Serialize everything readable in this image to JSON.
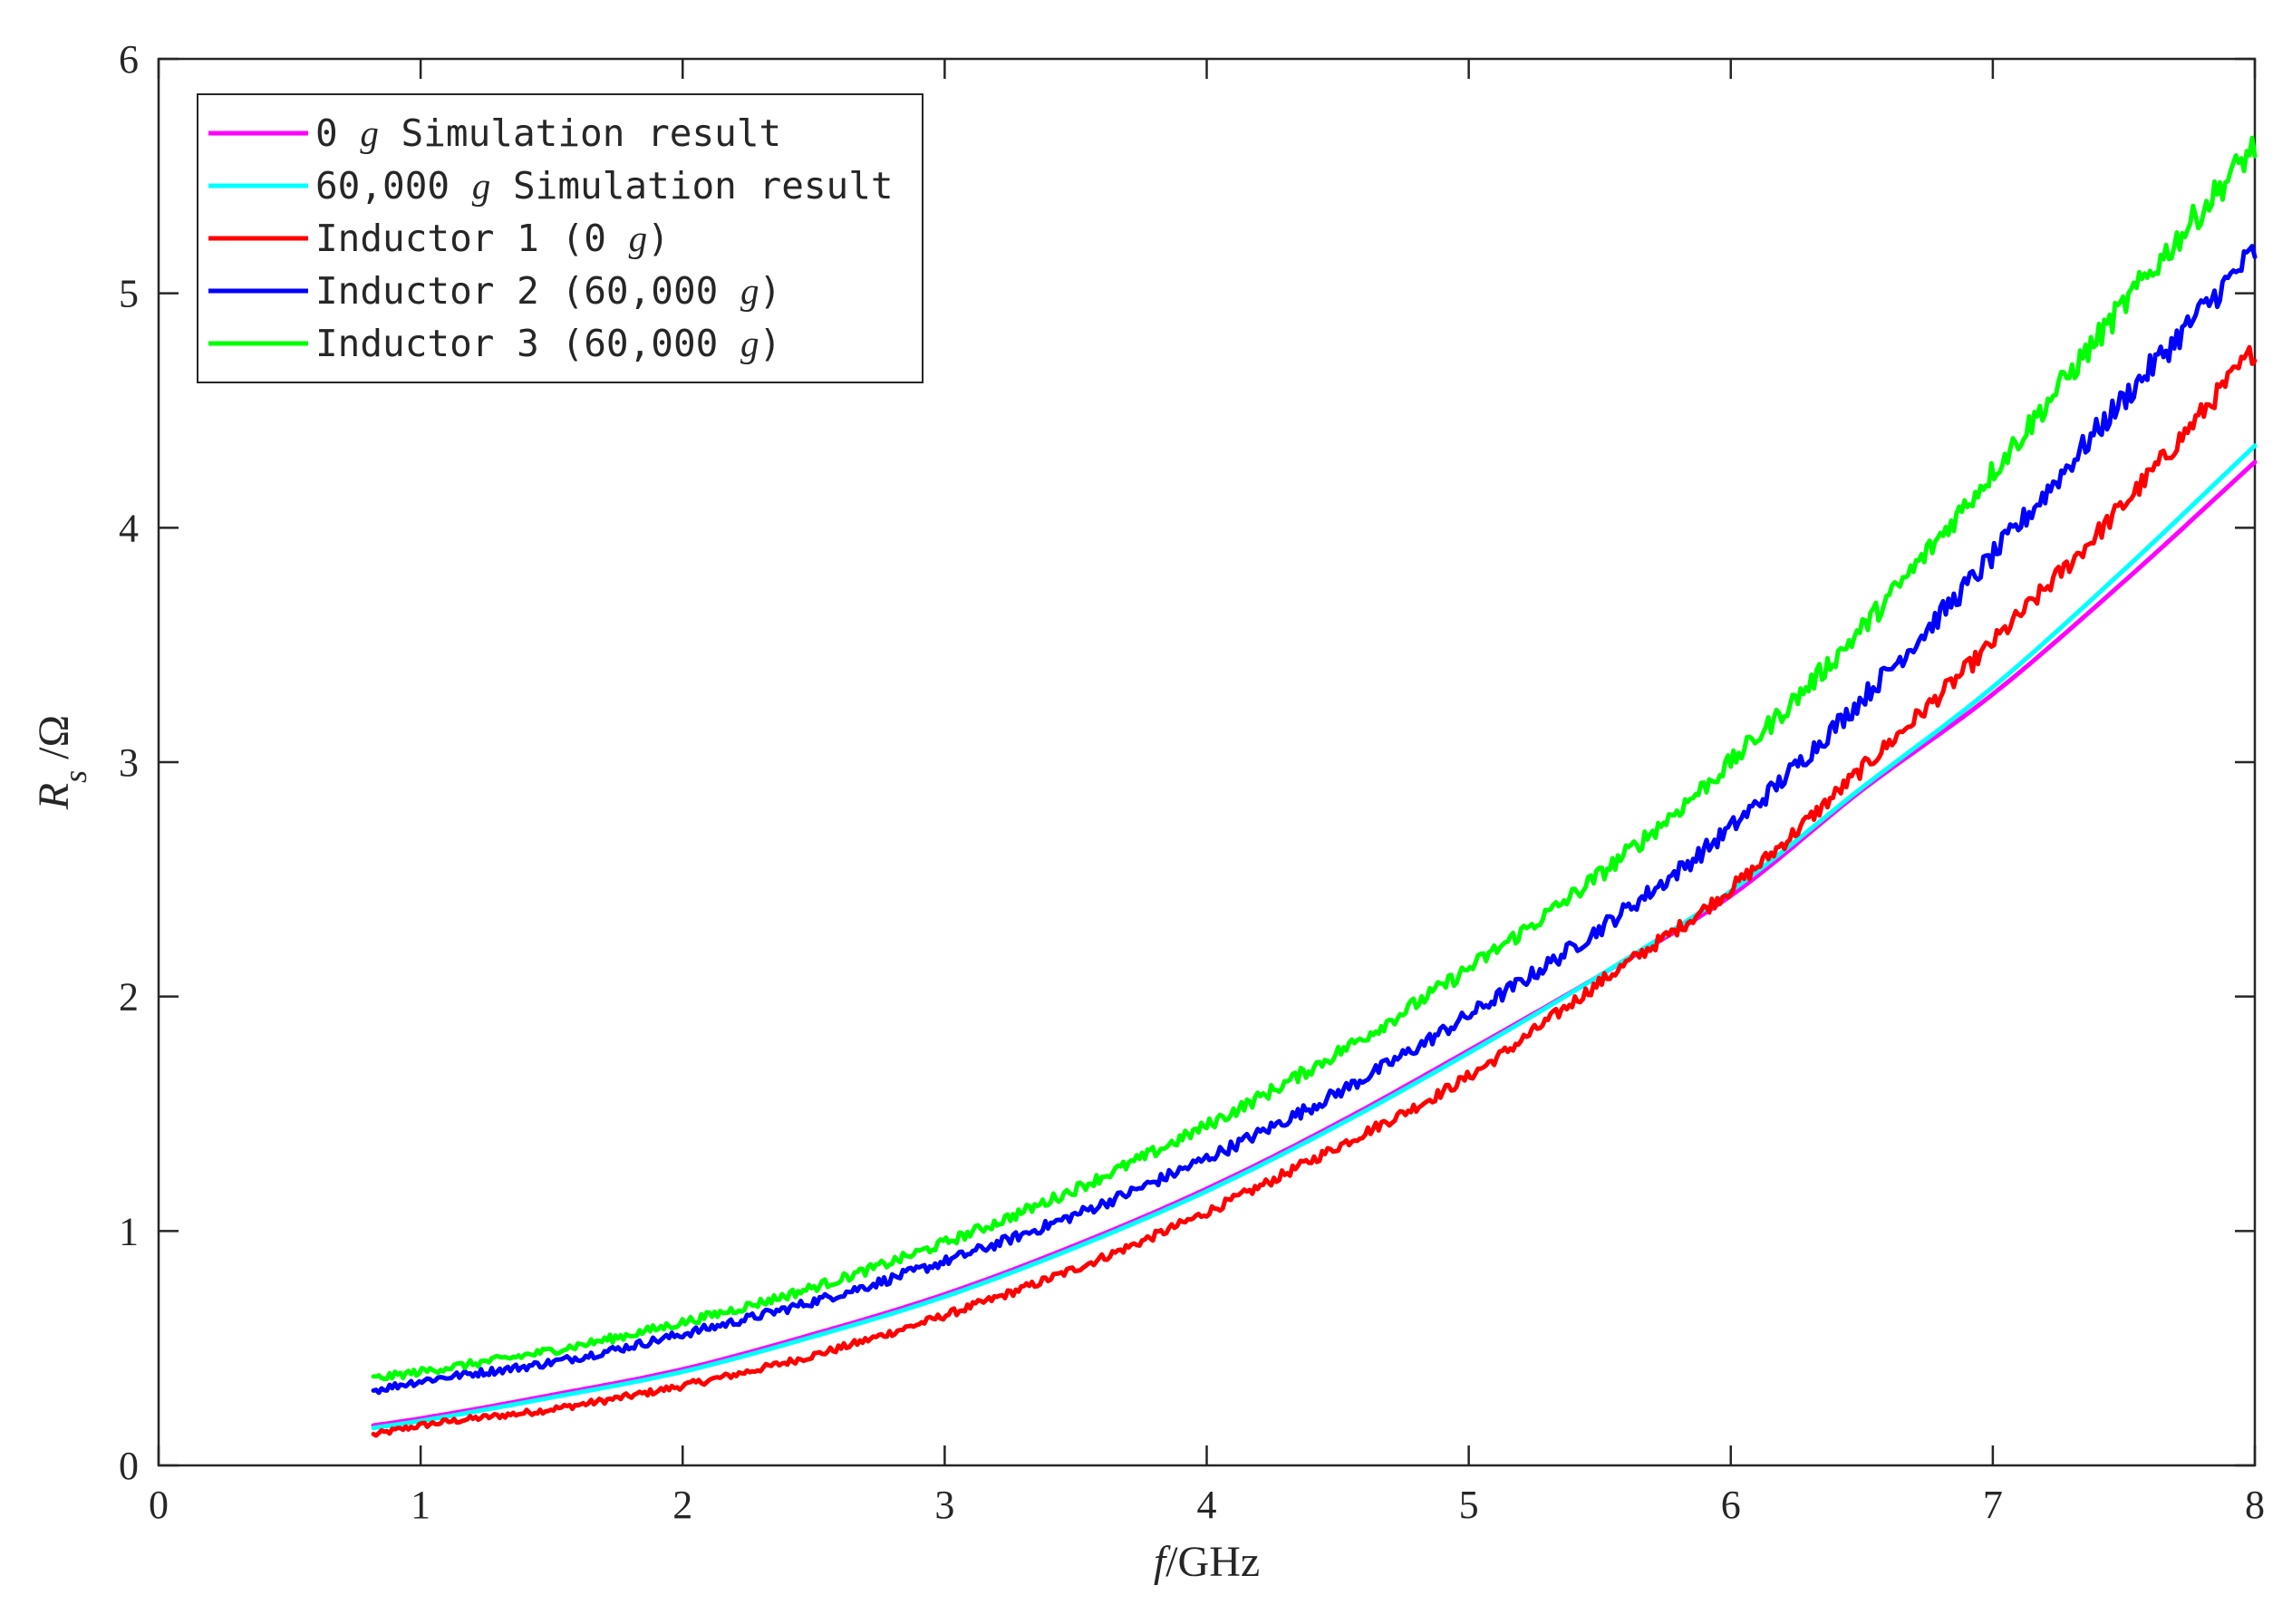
{
  "chart_data": {
    "type": "line",
    "xlim": [
      0,
      8
    ],
    "ylim": [
      0,
      6
    ],
    "xticks": [
      0,
      1,
      2,
      3,
      4,
      5,
      6,
      7,
      8
    ],
    "yticks": [
      0,
      1,
      2,
      3,
      4,
      5,
      6
    ],
    "xtick_labels": [
      "0",
      "1",
      "2",
      "3",
      "4",
      "5",
      "6",
      "7",
      "8"
    ],
    "ytick_labels": [
      "0",
      "1",
      "2",
      "3",
      "4",
      "5",
      "6"
    ],
    "xlabel": {
      "italic": "f",
      "rest": "/GHz"
    },
    "ylabel": {
      "main": "R",
      "subscript": "s",
      "rest": " /Ω"
    },
    "grid": false,
    "legend_position": "top-left",
    "x": [
      0.82,
      1.0,
      1.5,
      2.0,
      2.5,
      3.0,
      3.5,
      4.0,
      4.5,
      5.0,
      5.5,
      6.0,
      6.5,
      7.0,
      7.5,
      8.0
    ],
    "series": [
      {
        "name_parts": [
          {
            "text": "0 ",
            "italic": false
          },
          {
            "text": "g",
            "italic": true
          },
          {
            "text": " Simulation result",
            "italic": false
          }
        ],
        "color": "#ff00ff",
        "noise": 0,
        "values": [
          0.17,
          0.2,
          0.3,
          0.41,
          0.56,
          0.73,
          0.94,
          1.18,
          1.46,
          1.77,
          2.09,
          2.43,
          2.88,
          3.29,
          3.77,
          4.28
        ]
      },
      {
        "name_parts": [
          {
            "text": "60,000 ",
            "italic": false
          },
          {
            "text": "g",
            "italic": true
          },
          {
            "text": " Simulation result",
            "italic": false
          }
        ],
        "color": "#00ffff",
        "noise": 0,
        "values": [
          0.16,
          0.19,
          0.29,
          0.4,
          0.55,
          0.72,
          0.93,
          1.17,
          1.45,
          1.76,
          2.09,
          2.45,
          2.89,
          3.32,
          3.82,
          4.35
        ]
      },
      {
        "name_parts": [
          {
            "text": "Inductor 1 (0 ",
            "italic": false
          },
          {
            "text": "g",
            "italic": true
          },
          {
            "text": ")",
            "italic": false
          }
        ],
        "color": "#ff0000",
        "noise": 0.018,
        "values": [
          0.13,
          0.17,
          0.24,
          0.34,
          0.47,
          0.64,
          0.84,
          1.08,
          1.36,
          1.66,
          2.06,
          2.46,
          2.97,
          3.51,
          4.1,
          4.76
        ]
      },
      {
        "name_parts": [
          {
            "text": "Inductor 2 (60,000 ",
            "italic": false
          },
          {
            "text": "g",
            "italic": true
          },
          {
            "text": ")",
            "italic": false
          }
        ],
        "color": "#0000ff",
        "noise": 0.022,
        "values": [
          0.32,
          0.36,
          0.44,
          0.56,
          0.7,
          0.87,
          1.07,
          1.31,
          1.59,
          1.92,
          2.29,
          2.72,
          3.27,
          3.88,
          4.55,
          5.18
        ]
      },
      {
        "name_parts": [
          {
            "text": "Inductor 3 (60,000 ",
            "italic": false
          },
          {
            "text": "g",
            "italic": true
          },
          {
            "text": ")",
            "italic": false
          }
        ],
        "color": "#00ff00",
        "noise": 0.022,
        "values": [
          0.37,
          0.4,
          0.49,
          0.61,
          0.76,
          0.95,
          1.18,
          1.45,
          1.76,
          2.12,
          2.52,
          3.0,
          3.57,
          4.24,
          4.95,
          5.63
        ]
      }
    ]
  }
}
